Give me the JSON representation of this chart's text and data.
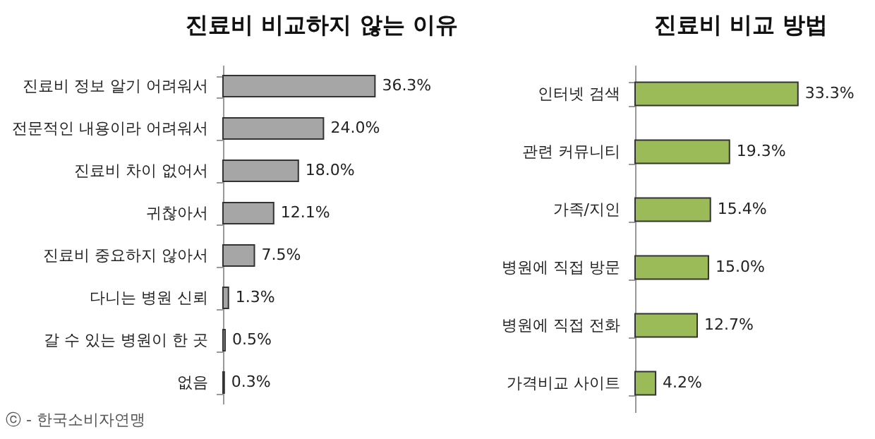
{
  "chart_data": [
    {
      "type": "bar",
      "orientation": "horizontal",
      "title": "진료비 비교하지 않는 이유",
      "categories": [
        "진료비 정보 알기 어려워서",
        "전문적인 내용이라 어려워서",
        "진료비 차이 없어서",
        "귀찮아서",
        "진료비 중요하지 않아서",
        "다니는 병원 신뢰",
        "갈 수 있는 병원이 한 곳",
        "없음"
      ],
      "values": [
        36.3,
        24.0,
        18.0,
        12.1,
        7.5,
        1.3,
        0.5,
        0.3
      ],
      "value_labels": [
        "36.3%",
        "24.0%",
        "18.0%",
        "12.1%",
        "7.5%",
        "1.3%",
        "0.5%",
        "0.3%"
      ],
      "color": "#a6a6a6",
      "tick_labels": "y",
      "annotations": [
        "ⓒ - 한국소비자연맹"
      ]
    },
    {
      "type": "bar",
      "orientation": "horizontal",
      "title": "진료비 비교 방법",
      "categories": [
        "인터넷 검색",
        "관련 커뮤니티",
        "가족/지인",
        "병원에 직접 방문",
        "병원에 직접 전화",
        "가격비교 사이트"
      ],
      "values": [
        33.3,
        19.3,
        15.4,
        15.0,
        12.7,
        4.2
      ],
      "value_labels": [
        "33.3%",
        "19.3%",
        "15.4%",
        "15.0%",
        "12.7%",
        "4.2%"
      ],
      "color": "#9bbb59",
      "tick_labels": "y"
    }
  ]
}
